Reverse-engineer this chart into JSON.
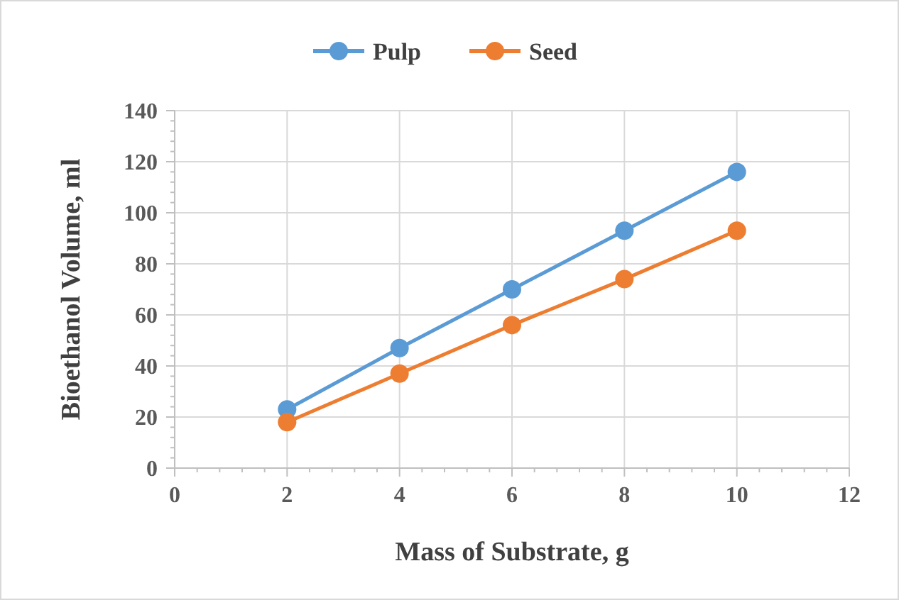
{
  "chart_data": {
    "type": "line",
    "xlabel": "Mass of Substrate, g",
    "ylabel": "Bioethanol Volume, ml",
    "x": [
      2,
      4,
      6,
      8,
      10
    ],
    "series": [
      {
        "name": "Pulp",
        "color": "#5b9bd5",
        "values": [
          23,
          47,
          70,
          93,
          116
        ]
      },
      {
        "name": "Seed",
        "color": "#ed7d31",
        "values": [
          18,
          37,
          56,
          74,
          93
        ]
      }
    ],
    "xlim": [
      0,
      12
    ],
    "xticks": [
      0,
      2,
      4,
      6,
      8,
      10,
      12
    ],
    "ylim": [
      0,
      140
    ],
    "yticks": [
      0,
      20,
      40,
      60,
      80,
      100,
      120,
      140
    ],
    "grid": true,
    "legend": "top",
    "marker": "circle",
    "line_style": "solid"
  }
}
